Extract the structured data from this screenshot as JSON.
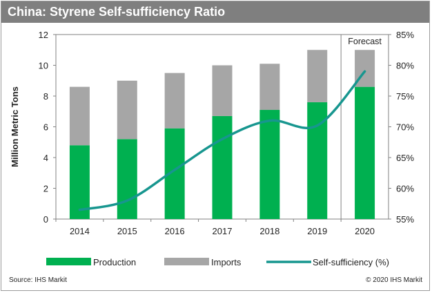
{
  "header": {
    "title": "China: Styrene Self-sufficiency Ratio"
  },
  "footer": {
    "source": "Source: IHS Markit",
    "copyright": "© 2020 IHS Markit"
  },
  "colors": {
    "production": "#00b050",
    "imports": "#a6a6a6",
    "line": "#17968f",
    "header_bg": "#7f7f7f"
  },
  "chart_data": {
    "type": "bar",
    "stacked": true,
    "categories": [
      "2014",
      "2015",
      "2016",
      "2017",
      "2018",
      "2019",
      "2020"
    ],
    "series": [
      {
        "name": "Production",
        "type": "bar",
        "axis": "left",
        "values": [
          4.8,
          5.2,
          5.9,
          6.7,
          7.1,
          7.6,
          8.6
        ]
      },
      {
        "name": "Imports",
        "type": "bar",
        "axis": "left",
        "values": [
          3.8,
          3.8,
          3.6,
          3.3,
          3.0,
          3.4,
          2.4
        ]
      },
      {
        "name": "Self-sufficiency (%)",
        "type": "line",
        "axis": "right",
        "values": [
          56.5,
          58.0,
          63.0,
          68.0,
          71.0,
          70.2,
          79.0
        ]
      }
    ],
    "ylabel": "Million Metric Tons",
    "ylim": [
      0,
      12
    ],
    "yticks": [
      "0",
      "2",
      "4",
      "6",
      "8",
      "10",
      "12"
    ],
    "y2lim": [
      55,
      85
    ],
    "y2ticks": [
      "55%",
      "60%",
      "65%",
      "70%",
      "75%",
      "80%",
      "85%"
    ],
    "annotation": "Forecast",
    "legend_position": "bottom"
  }
}
